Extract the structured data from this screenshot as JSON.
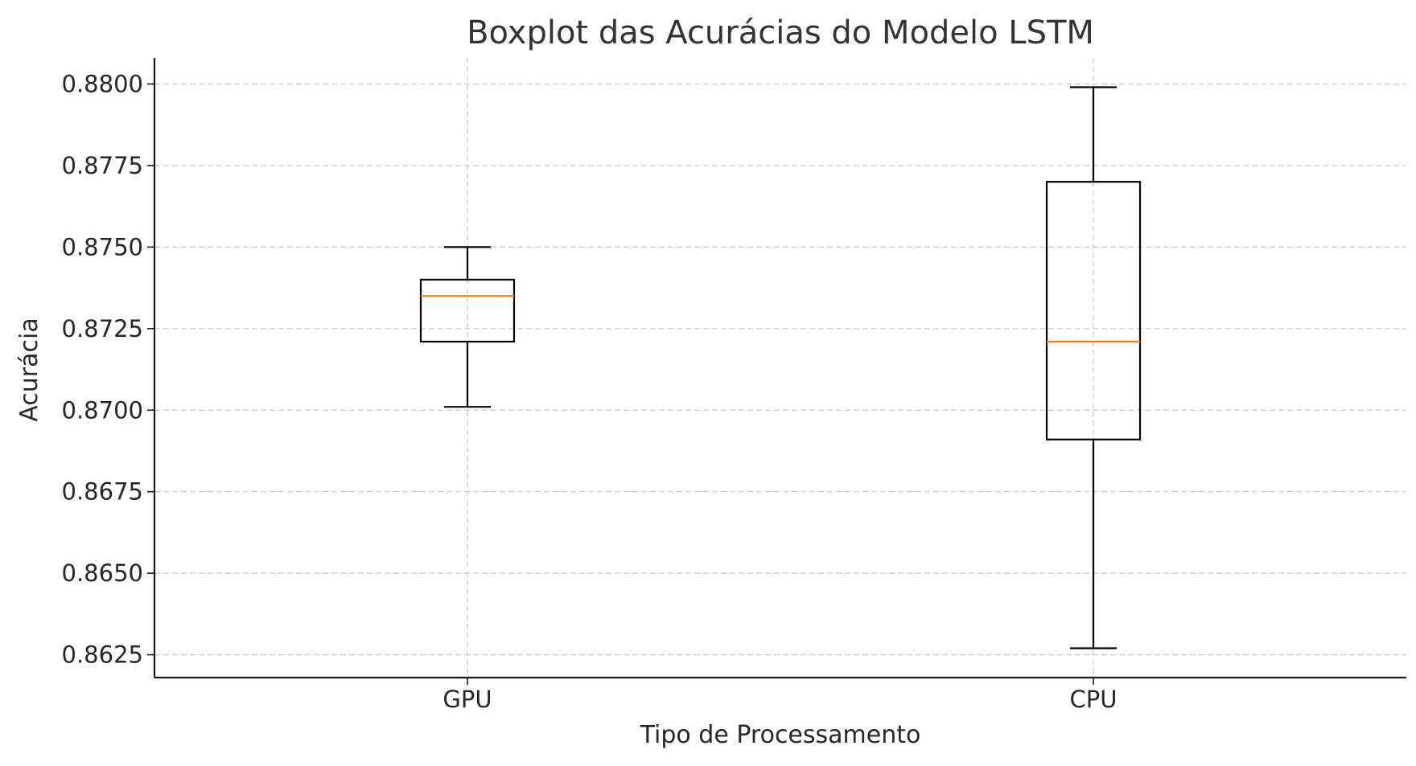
{
  "chart_data": {
    "type": "boxplot",
    "title": "Boxplot das Acurácias do Modelo LSTM",
    "xlabel": "Tipo de Processamento",
    "ylabel": "Acurácia",
    "categories": [
      "GPU",
      "CPU"
    ],
    "boxes": [
      {
        "category": "GPU",
        "whisker_low": 0.8701,
        "q1": 0.8721,
        "median": 0.8735,
        "q3": 0.874,
        "whisker_high": 0.875
      },
      {
        "category": "CPU",
        "whisker_low": 0.8627,
        "q1": 0.8691,
        "median": 0.8721,
        "q3": 0.877,
        "whisker_high": 0.8799
      }
    ],
    "ylim": [
      0.8618,
      0.8808
    ],
    "yticks": [
      0.8625,
      0.865,
      0.8675,
      0.87,
      0.8725,
      0.875,
      0.8775,
      0.88
    ],
    "ytick_labels": [
      "0.8625",
      "0.8650",
      "0.8675",
      "0.8700",
      "0.8725",
      "0.8750",
      "0.8775",
      "0.8800"
    ],
    "grid": true,
    "colors": {
      "box": "#000000",
      "median": "#ff7f0e",
      "grid": "#c8c8c8"
    }
  }
}
